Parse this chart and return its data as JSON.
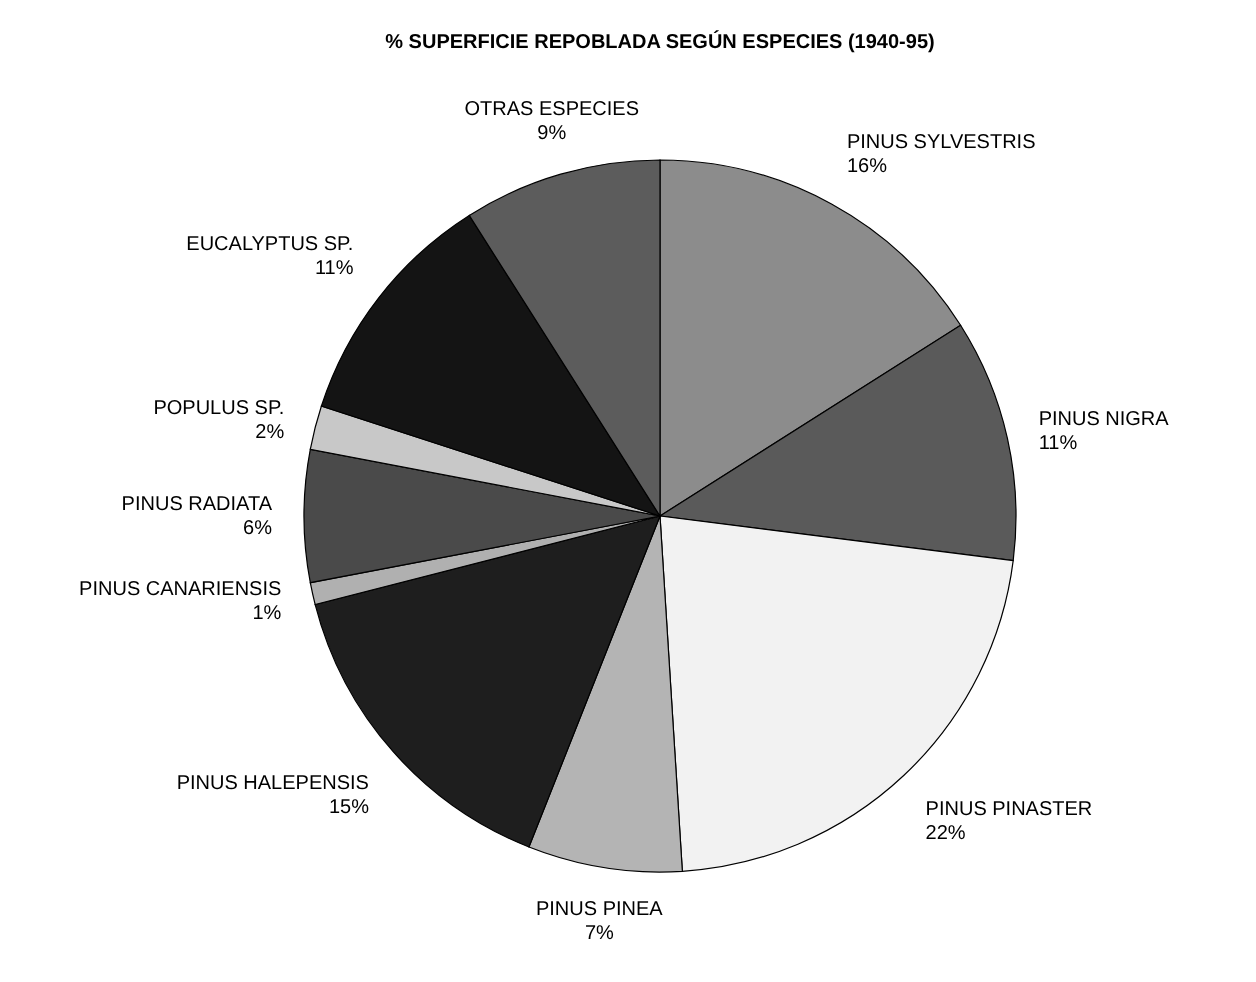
{
  "chart_data": {
    "type": "pie",
    "title": "% SUPERFICIE REPOBLADA SEGÚN ESPECIES (1940-95)",
    "categories": [
      "PINUS SYLVESTRIS",
      "PINUS NIGRA",
      "PINUS PINASTER",
      "PINUS PINEA",
      "PINUS HALEPENSIS",
      "PINUS CANARIENSIS",
      "PINUS RADIATA",
      "POPULUS SP.",
      "EUCALYPTUS SP.",
      "OTRAS ESPECIES"
    ],
    "values": [
      16,
      11,
      22,
      7,
      15,
      1,
      6,
      2,
      11,
      9
    ],
    "value_labels": [
      "16%",
      "11%",
      "22%",
      "7%",
      "15%",
      "1%",
      "6%",
      "2%",
      "11%",
      "9%"
    ],
    "colors": [
      "#8c8c8c",
      "#5a5a5a",
      "#f2f2f2",
      "#b4b4b4",
      "#1e1e1e",
      "#b0b0b0",
      "#4a4a4a",
      "#c8c8c8",
      "#141414",
      "#5c5c5c"
    ]
  }
}
